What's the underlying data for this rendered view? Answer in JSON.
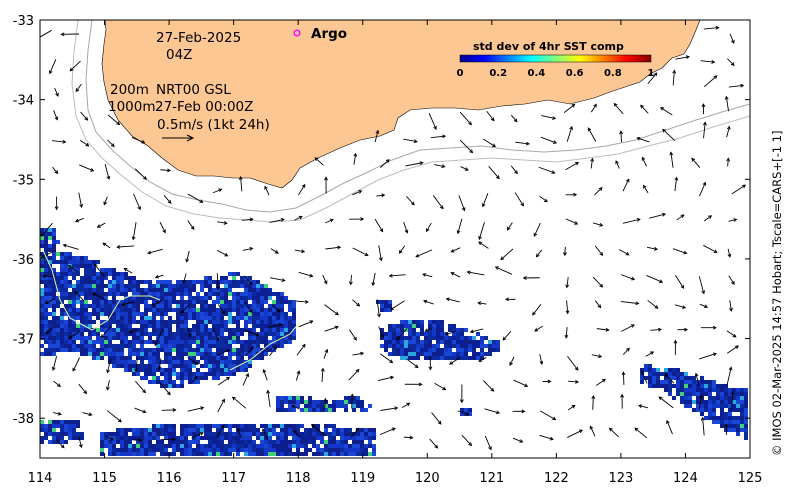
{
  "map": {
    "region": "Great Australian Bight / SW Australia shelf",
    "xaxis": {
      "range": [
        114,
        125
      ],
      "ticks": [
        "114",
        "115",
        "116",
        "117",
        "118",
        "119",
        "120",
        "121",
        "122",
        "123",
        "124",
        "125"
      ]
    },
    "yaxis": {
      "range": [
        -38.5,
        -33
      ],
      "ticks": [
        "-33",
        "-34",
        "-35",
        "-36",
        "-37",
        "-38"
      ]
    }
  },
  "annotations": {
    "date": "27-Feb-2025",
    "time": "04Z",
    "depth_200": "200m",
    "product": "NRT00 GSL",
    "depth_1000": "1000m",
    "product_time": "27-Feb 00:00Z",
    "vector_scale": "0.5m/s (1kt 24h)"
  },
  "legend": {
    "argo_label": "Argo",
    "argo_color": "#ff00ff"
  },
  "colorbar": {
    "title": "std dev of 4hr SST comp",
    "ticks": [
      "0",
      "0.2",
      "0.4",
      "0.6",
      "0.8",
      "1"
    ],
    "colormap": "jet"
  },
  "credit": "© IMOS 02-Mar-2025 14:57 Hobart; Tscale=CARS+[-1 1]",
  "colors": {
    "land": "#fdc794",
    "sst_low": "#0a1e96",
    "sst_mid": "#1437c8",
    "isobath": "#a0a0a0"
  }
}
